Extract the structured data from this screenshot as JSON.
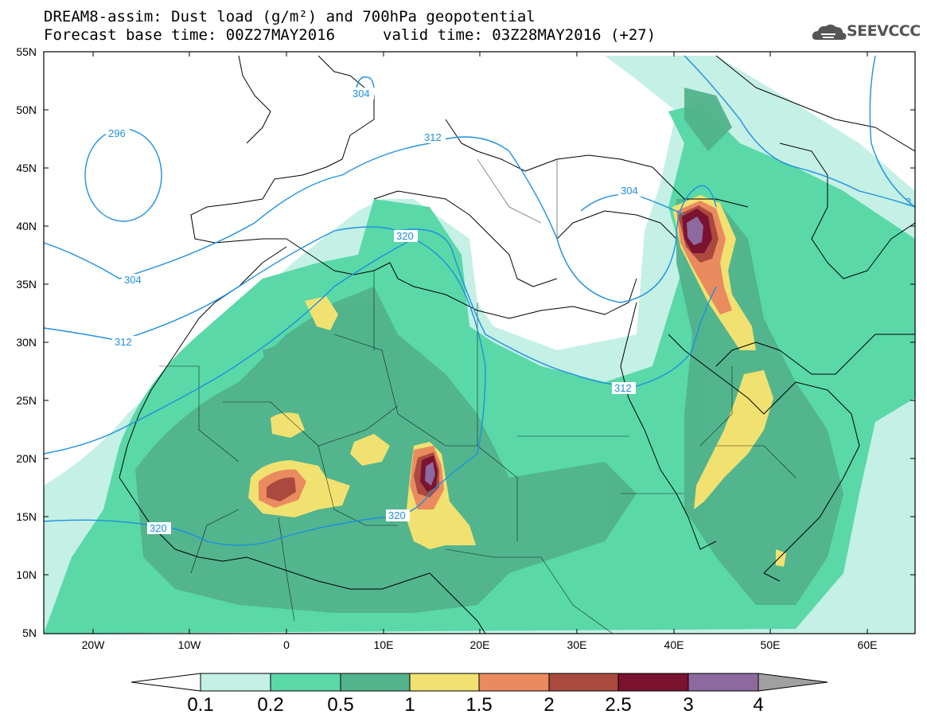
{
  "title": {
    "line1": "DREAM8-assim: Dust load (g/m²) and 700hPa geopotential",
    "line2": "Forecast base time: 00Z27MAY2016",
    "valid": "valid time: 03Z28MAY2016 (+27)"
  },
  "logo": {
    "text": "SEEVCCC",
    "icon": "cloud-icon"
  },
  "axes": {
    "lat_labels": [
      "55N",
      "50N",
      "45N",
      "40N",
      "35N",
      "30N",
      "25N",
      "20N",
      "15N",
      "10N",
      "5N"
    ],
    "lon_labels": [
      "20W",
      "10W",
      "0",
      "10E",
      "20E",
      "30E",
      "40E",
      "50E",
      "60E"
    ]
  },
  "contour_labels": {
    "c296": "296",
    "c304a": "304",
    "c304b": "304",
    "c304c": "304",
    "c312a": "312",
    "c312b": "312",
    "c312c": "312",
    "c320a": "320",
    "c320b": "320",
    "c320c": "320",
    "c3": "3"
  },
  "colorbar": {
    "labels": [
      "0.1",
      "0.2",
      "0.5",
      "1",
      "1.5",
      "2",
      "2.5",
      "3",
      "4"
    ],
    "colors": [
      "#c4f0e6",
      "#5ad8a8",
      "#52b38c",
      "#f1e170",
      "#e98b5f",
      "#aa4a3e",
      "#7a1230",
      "#8c6aa0"
    ]
  },
  "palette": {
    "c01": "#c4f0e6",
    "c02": "#5ad8a8",
    "c05": "#52b38c",
    "c1": "#f1e170",
    "c15": "#e98b5f",
    "c2": "#aa4a3e",
    "c25": "#7a1230",
    "c3": "#8c6aa0",
    "contour": "#1e90e0"
  }
}
